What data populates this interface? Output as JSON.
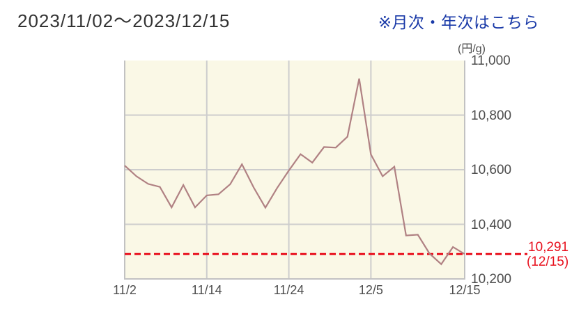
{
  "header": {
    "title": "2023/11/02〜2023/12/15",
    "link_label": "※月次・年次はこちら"
  },
  "chart_data": {
    "type": "line",
    "title": "",
    "unit_label": "(円/g)",
    "xlabel": "",
    "ylabel": "(円/g)",
    "x": [
      "11/2",
      "11/6",
      "11/7",
      "11/8",
      "11/9",
      "11/10",
      "11/13",
      "11/14",
      "11/15",
      "11/16",
      "11/17",
      "11/20",
      "11/21",
      "11/22",
      "11/24",
      "11/27",
      "11/28",
      "11/29",
      "11/30",
      "12/1",
      "12/4",
      "12/5",
      "12/6",
      "12/7",
      "12/8",
      "12/11",
      "12/12",
      "12/13",
      "12/14",
      "12/15"
    ],
    "values": [
      10615,
      10576,
      10548,
      10537,
      10462,
      10544,
      10462,
      10506,
      10510,
      10547,
      10620,
      10535,
      10461,
      10533,
      10597,
      10657,
      10626,
      10683,
      10681,
      10721,
      10934,
      10656,
      10576,
      10611,
      10359,
      10362,
      10293,
      10254,
      10317,
      10291
    ],
    "ylim": [
      10200,
      11000
    ],
    "grid": true,
    "legend_position": "none",
    "y_ticks": [
      {
        "value": 11000,
        "label": "11,000"
      },
      {
        "value": 10800,
        "label": "10,800"
      },
      {
        "value": 10600,
        "label": "10,600"
      },
      {
        "value": 10400,
        "label": "10,400"
      },
      {
        "value": 10200,
        "label": "10,200"
      }
    ],
    "x_ticks": [
      {
        "index": 0,
        "label": "11/2"
      },
      {
        "index": 7,
        "label": "11/14"
      },
      {
        "index": 14,
        "label": "11/24"
      },
      {
        "index": 21,
        "label": "12/5"
      },
      {
        "index": 29,
        "label": "12/15"
      }
    ],
    "y_gridlines": [
      10800,
      10600,
      10400
    ],
    "x_grid_indices": [
      7,
      14,
      21
    ],
    "annotation": {
      "value": 10291,
      "label": "10,291",
      "date_label": "(12/15)"
    },
    "colors": {
      "line": "#b08183",
      "accent_red": "#e8111e",
      "plot_bg": "#faf8e6",
      "grid": "#cdcdcd",
      "border": "#c2c2c2",
      "link_blue": "#1a3aa8",
      "title_text": "#333333",
      "tick_text": "#4d4d4d"
    }
  }
}
